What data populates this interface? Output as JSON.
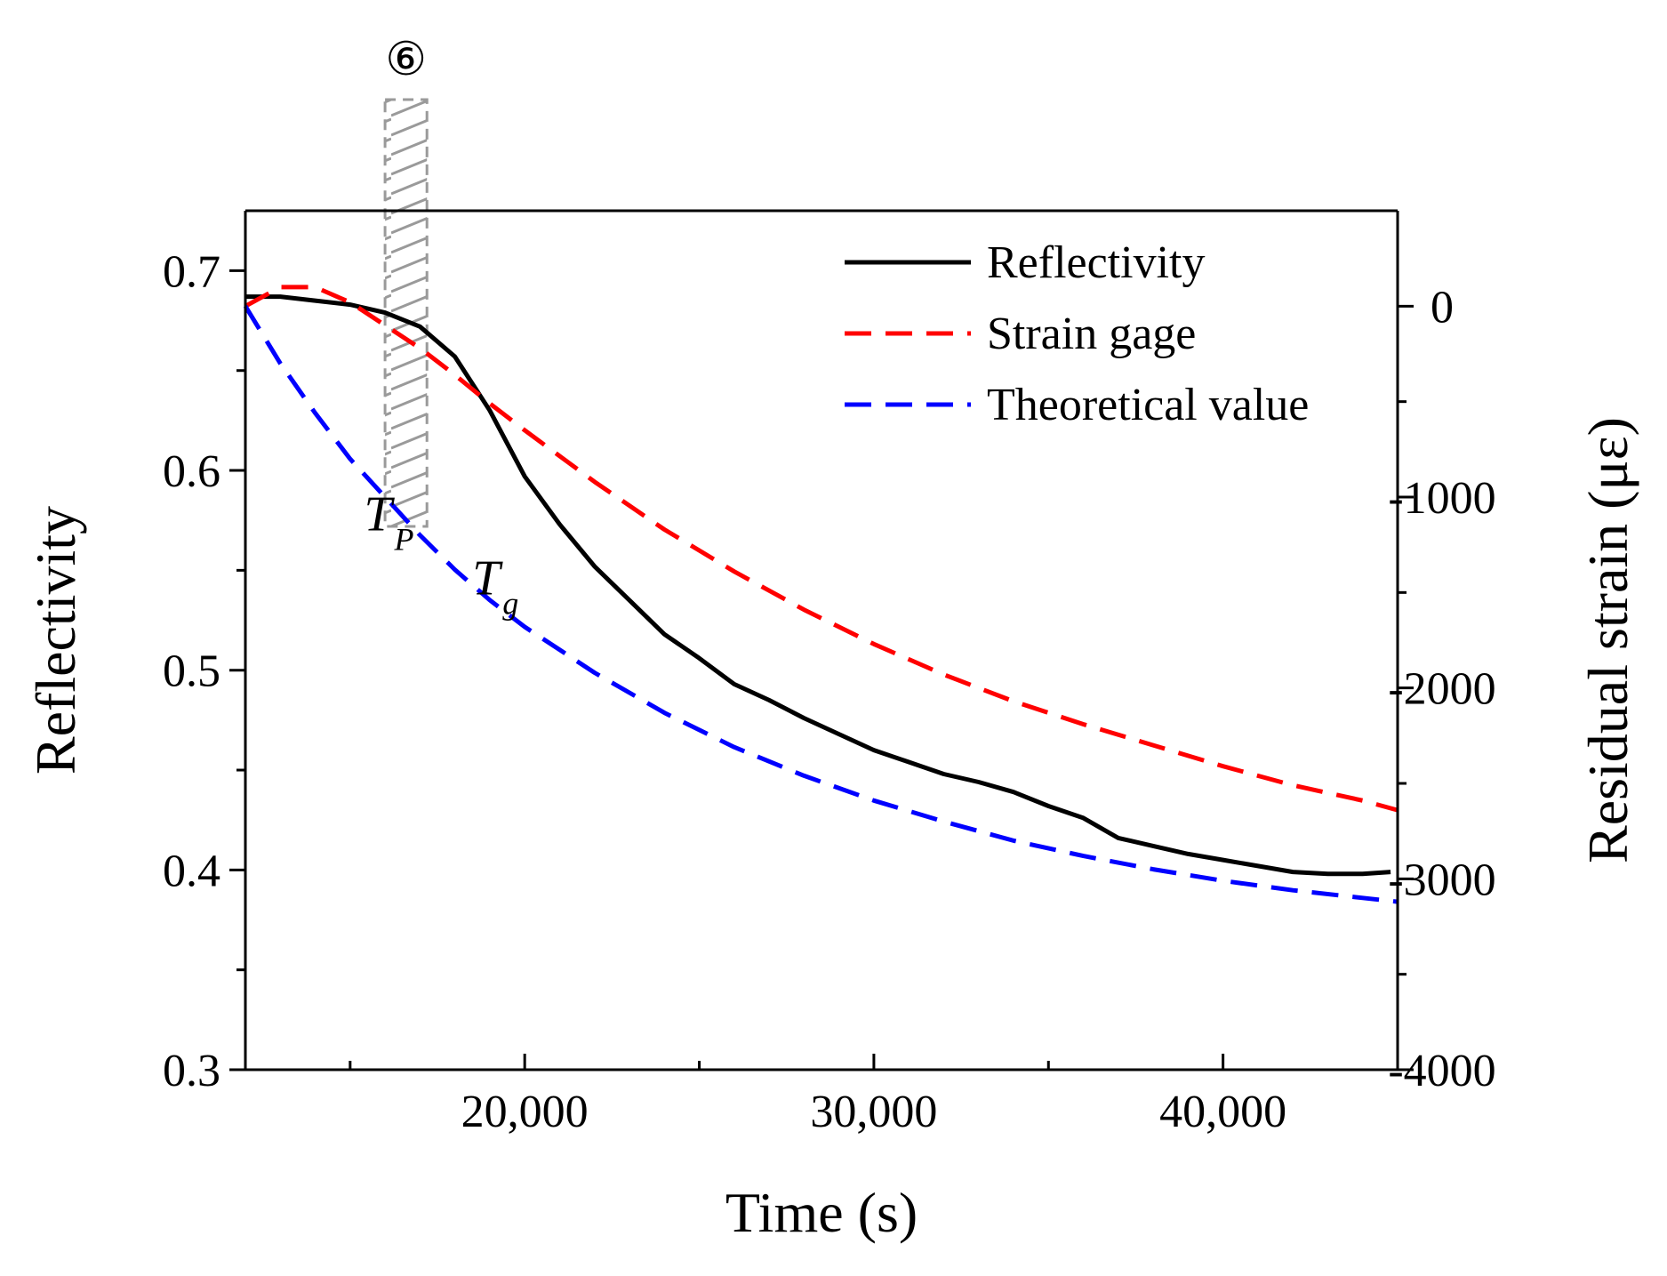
{
  "chart_data": {
    "type": "line",
    "title": "",
    "xlabel": "Time (s)",
    "ylabel": "Reflectivity",
    "y2label": "Residual strain (με)",
    "xlim": [
      12000,
      45000
    ],
    "ylim": [
      0.3,
      0.73
    ],
    "y2lim": [
      -4000,
      500
    ],
    "x_ticks": [
      {
        "value": 20000,
        "label": "20,000"
      },
      {
        "value": 30000,
        "label": "30,000"
      },
      {
        "value": 40000,
        "label": "40,000"
      }
    ],
    "x_minor_ticks": [
      15000,
      25000,
      35000,
      45000
    ],
    "y_ticks": [
      {
        "value": 0.3,
        "label": "0.3"
      },
      {
        "value": 0.4,
        "label": "0.4"
      },
      {
        "value": 0.5,
        "label": "0.5"
      },
      {
        "value": 0.6,
        "label": "0.6"
      },
      {
        "value": 0.7,
        "label": "0.7"
      }
    ],
    "y_minor_ticks": [
      0.35,
      0.45,
      0.55,
      0.65
    ],
    "y2_ticks": [
      {
        "value": 0,
        "label": "0"
      },
      {
        "value": -1000,
        "label": "-1000"
      },
      {
        "value": -2000,
        "label": "-2000"
      },
      {
        "value": -3000,
        "label": "-3000"
      },
      {
        "value": -4000,
        "label": "-4000"
      }
    ],
    "y2_minor_ticks": [
      -500,
      -1500,
      -2500,
      -3500
    ],
    "legend": {
      "position": "top-right",
      "entries": [
        {
          "label": "Reflectivity",
          "series": "reflectivity"
        },
        {
          "label": "Strain gage",
          "series": "strain_gage"
        },
        {
          "label": "Theoretical value",
          "series": "theoretical"
        }
      ]
    },
    "series": [
      {
        "name": "Reflectivity",
        "id": "reflectivity",
        "axis": "left",
        "color": "#000000",
        "style": "solid",
        "x": [
          12000,
          13000,
          14000,
          15000,
          16000,
          17000,
          18000,
          19000,
          20000,
          21000,
          22000,
          23000,
          24000,
          25000,
          26000,
          27000,
          28000,
          29000,
          30000,
          31000,
          32000,
          33000,
          34000,
          35000,
          36000,
          37000,
          38000,
          39000,
          40000,
          41000,
          42000,
          43000,
          44000,
          44800
        ],
        "y": [
          0.687,
          0.687,
          0.685,
          0.683,
          0.679,
          0.672,
          0.657,
          0.63,
          0.597,
          0.573,
          0.552,
          0.535,
          0.518,
          0.506,
          0.493,
          0.485,
          0.476,
          0.468,
          0.46,
          0.454,
          0.448,
          0.444,
          0.439,
          0.432,
          0.426,
          0.416,
          0.412,
          0.408,
          0.405,
          0.402,
          0.399,
          0.398,
          0.398,
          0.399
        ]
      },
      {
        "name": "Strain gage",
        "id": "strain_gage",
        "axis": "right",
        "color": "#ff0000",
        "style": "dashed",
        "x": [
          12000,
          13000,
          14000,
          15000,
          16000,
          17000,
          18000,
          19000,
          20000,
          22000,
          24000,
          26000,
          28000,
          30000,
          32000,
          34000,
          36000,
          38000,
          40000,
          42000,
          44000,
          45000
        ],
        "y": [
          0,
          100,
          100,
          20,
          -100,
          -220,
          -360,
          -510,
          -650,
          -920,
          -1170,
          -1390,
          -1590,
          -1770,
          -1930,
          -2070,
          -2190,
          -2300,
          -2410,
          -2510,
          -2590,
          -2640
        ]
      },
      {
        "name": "Theoretical value",
        "id": "theoretical",
        "axis": "right",
        "color": "#0000ff",
        "style": "dashed",
        "x": [
          12000,
          13000,
          14000,
          15000,
          16000,
          17000,
          18000,
          19000,
          20000,
          22000,
          24000,
          26000,
          28000,
          30000,
          32000,
          34000,
          36000,
          38000,
          40000,
          42000,
          44000,
          45000
        ],
        "y": [
          0,
          -300,
          -560,
          -800,
          -1000,
          -1200,
          -1380,
          -1540,
          -1680,
          -1920,
          -2130,
          -2310,
          -2460,
          -2590,
          -2700,
          -2800,
          -2880,
          -2950,
          -3010,
          -3060,
          -3100,
          -3120
        ]
      }
    ],
    "annotations": [
      {
        "id": "marker-6",
        "label": "⑥",
        "x_from": 16000,
        "x_to": 17200,
        "description": "hatched band"
      },
      {
        "id": "tp",
        "main": "T",
        "sub": "P",
        "x": 15400,
        "y": 0.57
      },
      {
        "id": "tg",
        "main": "T",
        "sub": "g",
        "x": 18500,
        "y": 0.538
      }
    ]
  }
}
